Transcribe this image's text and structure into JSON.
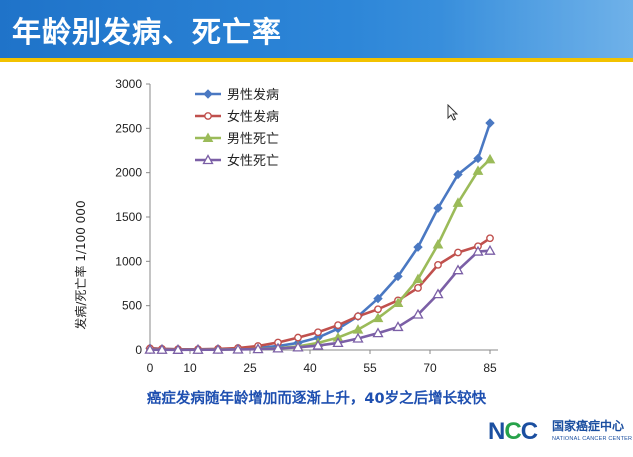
{
  "page": {
    "title": "年龄别发病、死亡率",
    "subtitle": "癌症发病随年龄增加而逐渐上升，40岁之后增长较快",
    "logo": {
      "mark_prefix": "N",
      "mark_accent": "C",
      "mark_suffix": "C",
      "org_name": "国家癌症中心",
      "org_name_en": "NATIONAL CANCER CENTER"
    }
  },
  "colors": {
    "header": "#2a80d4",
    "header_stripe": "#f2c200",
    "subtitle": "#1e4fb0",
    "male_incidence": "#4a78c2",
    "female_incidence": "#c0504d",
    "male_mortality": "#9bbb59",
    "female_mortality": "#7b5fa6"
  },
  "chart_data": {
    "type": "line",
    "ylabel": "发病/死亡率  1/100 000",
    "xlabel": "",
    "xlim": [
      0,
      85
    ],
    "ylim": [
      0,
      3000
    ],
    "x_ticks": [
      0,
      10,
      25,
      40,
      55,
      70,
      85
    ],
    "y_ticks": [
      0,
      500,
      1000,
      1500,
      2000,
      2500,
      3000
    ],
    "legend_position": "top-left",
    "grid": false,
    "x": [
      0,
      3,
      7,
      12,
      17,
      22,
      27,
      32,
      37,
      42,
      47,
      52,
      57,
      62,
      67,
      72,
      77,
      82,
      85
    ],
    "series": [
      {
        "name": "男性发病",
        "marker": "diamond",
        "color_key": "male_incidence",
        "values": [
          20,
          12,
          8,
          8,
          10,
          15,
          25,
          45,
          80,
          140,
          240,
          380,
          580,
          830,
          1160,
          1600,
          1980,
          2160,
          2560
        ]
      },
      {
        "name": "女性发病",
        "marker": "circle",
        "color_key": "female_incidence",
        "values": [
          18,
          12,
          8,
          8,
          12,
          22,
          45,
          85,
          140,
          200,
          280,
          380,
          460,
          560,
          700,
          960,
          1100,
          1170,
          1260
        ]
      },
      {
        "name": "男性死亡",
        "marker": "triangle",
        "color_key": "male_mortality",
        "values": [
          5,
          4,
          3,
          4,
          5,
          7,
          12,
          20,
          40,
          80,
          140,
          230,
          360,
          530,
          800,
          1190,
          1660,
          2020,
          2150
        ]
      },
      {
        "name": "女性死亡",
        "marker": "triangle-open",
        "color_key": "female_mortality",
        "values": [
          4,
          3,
          2,
          3,
          4,
          6,
          10,
          18,
          30,
          50,
          80,
          130,
          190,
          260,
          400,
          630,
          900,
          1110,
          1120
        ]
      }
    ]
  }
}
